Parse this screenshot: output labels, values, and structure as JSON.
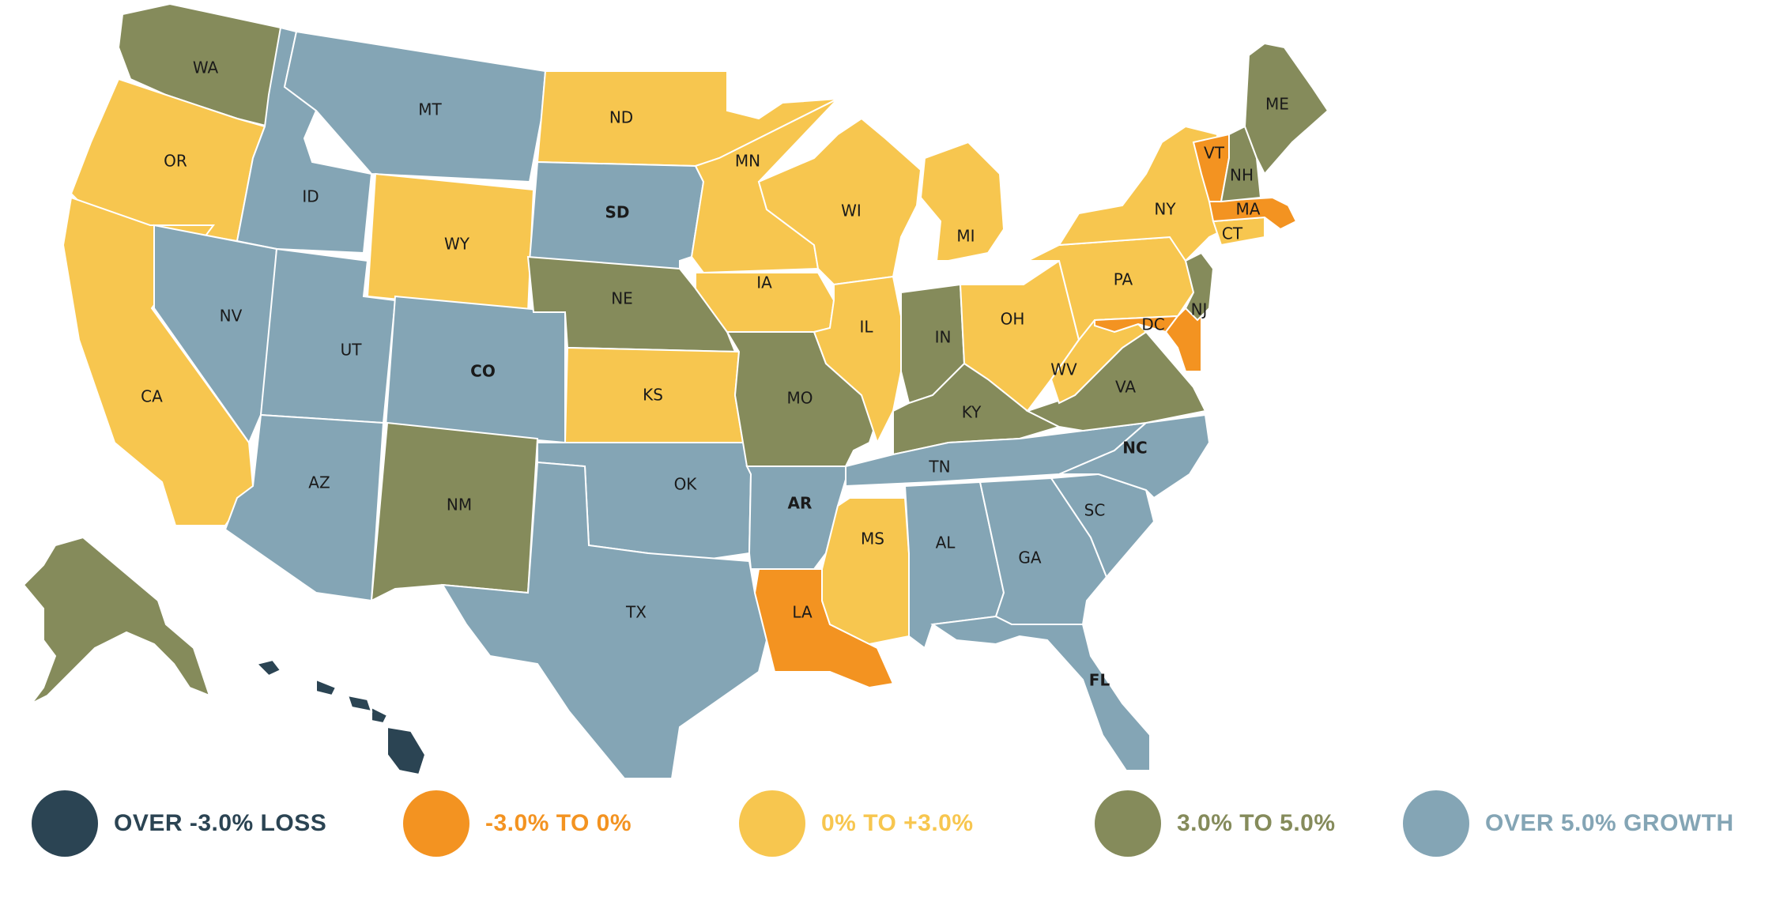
{
  "colors": {
    "over_loss": "#2b4453",
    "neg_to_zero": "#f39321",
    "zero_to_three": "#f7c64f",
    "three_to_five": "#858b5b",
    "over_five": "#84a5b5"
  },
  "legend": [
    {
      "label": "OVER  -3.0% LOSS",
      "key": "over_loss"
    },
    {
      "label": "-3.0% TO 0%",
      "key": "neg_to_zero"
    },
    {
      "label": "0% TO +3.0%",
      "key": "zero_to_three"
    },
    {
      "label": "3.0% TO 5.0%",
      "key": "three_to_five"
    },
    {
      "label": "OVER 5.0% GROWTH",
      "key": "over_five"
    }
  ],
  "states": [
    {
      "abbr": "WA",
      "cat": "three_to_five"
    },
    {
      "abbr": "OR",
      "cat": "zero_to_three"
    },
    {
      "abbr": "CA",
      "cat": "zero_to_three"
    },
    {
      "abbr": "ID",
      "cat": "over_five"
    },
    {
      "abbr": "NV",
      "cat": "over_five"
    },
    {
      "abbr": "MT",
      "cat": "over_five"
    },
    {
      "abbr": "WY",
      "cat": "zero_to_three"
    },
    {
      "abbr": "UT",
      "cat": "over_five"
    },
    {
      "abbr": "CO",
      "cat": "over_five",
      "bold": true
    },
    {
      "abbr": "AZ",
      "cat": "over_five"
    },
    {
      "abbr": "NM",
      "cat": "three_to_five"
    },
    {
      "abbr": "ND",
      "cat": "zero_to_three"
    },
    {
      "abbr": "SD",
      "cat": "over_five",
      "bold": true
    },
    {
      "abbr": "NE",
      "cat": "three_to_five"
    },
    {
      "abbr": "KS",
      "cat": "zero_to_three"
    },
    {
      "abbr": "OK",
      "cat": "over_five"
    },
    {
      "abbr": "TX",
      "cat": "over_five"
    },
    {
      "abbr": "MN",
      "cat": "zero_to_three"
    },
    {
      "abbr": "IA",
      "cat": "zero_to_three"
    },
    {
      "abbr": "MO",
      "cat": "three_to_five"
    },
    {
      "abbr": "AR",
      "cat": "over_five",
      "bold": true
    },
    {
      "abbr": "LA",
      "cat": "neg_to_zero"
    },
    {
      "abbr": "WI",
      "cat": "zero_to_three"
    },
    {
      "abbr": "IL",
      "cat": "zero_to_three"
    },
    {
      "abbr": "MI",
      "cat": "zero_to_three"
    },
    {
      "abbr": "IN",
      "cat": "three_to_five"
    },
    {
      "abbr": "OH",
      "cat": "zero_to_three"
    },
    {
      "abbr": "KY",
      "cat": "three_to_five"
    },
    {
      "abbr": "TN",
      "cat": "over_five"
    },
    {
      "abbr": "MS",
      "cat": "zero_to_three"
    },
    {
      "abbr": "AL",
      "cat": "over_five"
    },
    {
      "abbr": "GA",
      "cat": "over_five"
    },
    {
      "abbr": "FL",
      "cat": "over_five",
      "bold": true
    },
    {
      "abbr": "SC",
      "cat": "over_five"
    },
    {
      "abbr": "NC",
      "cat": "over_five",
      "bold": true
    },
    {
      "abbr": "VA",
      "cat": "three_to_five"
    },
    {
      "abbr": "WV",
      "cat": "zero_to_three"
    },
    {
      "abbr": "PA",
      "cat": "zero_to_three"
    },
    {
      "abbr": "NY",
      "cat": "zero_to_three"
    },
    {
      "abbr": "DC",
      "cat": "neg_to_zero"
    },
    {
      "abbr": "NJ",
      "cat": "three_to_five"
    },
    {
      "abbr": "CT",
      "cat": "zero_to_three"
    },
    {
      "abbr": "MA",
      "cat": "neg_to_zero"
    },
    {
      "abbr": "VT",
      "cat": "neg_to_zero"
    },
    {
      "abbr": "NH",
      "cat": "three_to_five"
    },
    {
      "abbr": "ME",
      "cat": "three_to_five"
    },
    {
      "abbr": "AK",
      "cat": "three_to_five"
    },
    {
      "abbr": "HI",
      "cat": "over_loss"
    }
  ]
}
